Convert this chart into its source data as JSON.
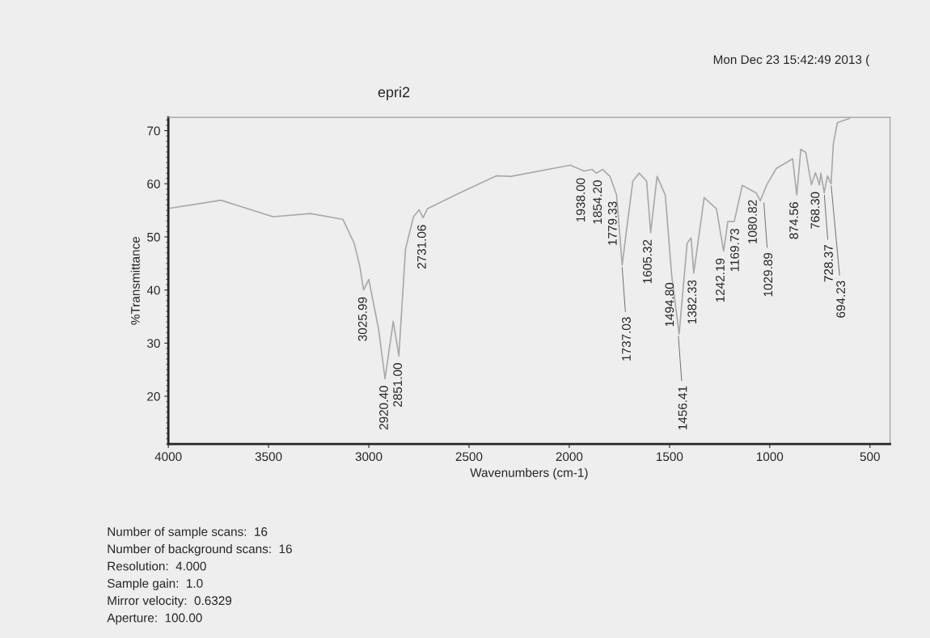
{
  "chart_data": {
    "type": "line",
    "title": "epri2",
    "xlabel": "Wavenumbers (cm-1)",
    "ylabel": "%Transmittance",
    "xlim": [
      4000,
      400
    ],
    "xticks": [
      4000,
      3500,
      3000,
      2500,
      2000,
      1500,
      1000,
      500
    ],
    "ylim": [
      11,
      72.5
    ],
    "yticks": [
      20,
      30,
      40,
      50,
      60,
      70
    ],
    "grid": false,
    "legend": false,
    "marker": "none",
    "line_style": "solid",
    "series": [
      {
        "color": "#a9a9a9",
        "x": [
          3992,
          3737,
          3478,
          3291,
          3129,
          3073,
          3045,
          3026,
          3000,
          2951,
          2919,
          2878,
          2850,
          2817,
          2777,
          2749,
          2729,
          2708,
          2546,
          2364,
          2291,
          1995,
          1926,
          1886,
          1865,
          1833,
          1797,
          1764,
          1736,
          1716,
          1683,
          1651,
          1614,
          1594,
          1562,
          1521,
          1489,
          1452,
          1412,
          1392,
          1379,
          1327,
          1266,
          1230,
          1209,
          1177,
          1137,
          1068,
          1047,
          1015,
          967,
          886,
          865,
          845,
          820,
          792,
          772,
          752,
          745,
          728,
          712,
          694,
          683,
          663,
          602
        ],
        "values": [
          55.4,
          56.9,
          53.8,
          54.4,
          53.3,
          48.8,
          44.5,
          40.0,
          42.0,
          32.6,
          23.3,
          34.1,
          27.6,
          47.7,
          53.8,
          55.1,
          53.6,
          55.3,
          58.3,
          61.5,
          61.4,
          63.5,
          62.4,
          62.7,
          62.0,
          62.7,
          61.4,
          57.9,
          44.7,
          50.8,
          60.5,
          62.0,
          60.5,
          50.8,
          61.4,
          57.9,
          42.7,
          31.7,
          48.8,
          49.8,
          43.2,
          57.4,
          55.3,
          47.3,
          52.9,
          52.9,
          59.7,
          58.3,
          56.8,
          59.8,
          62.9,
          64.7,
          57.9,
          66.5,
          65.9,
          59.8,
          62.1,
          59.8,
          62.0,
          58.3,
          61.5,
          60.0,
          67.4,
          71.5,
          72.3
        ]
      }
    ],
    "annotations": [
      "Mon Dec 23 15:42:49 2013 (",
      "Number of sample scans:  16",
      "Number of background scans:  16",
      "Resolution:  4.000",
      "Sample gain:  1.0",
      "Mirror velocity:  0.6329",
      "Aperture:  100.00",
      {
        "text": "3025.99",
        "x": 3025.99,
        "y": 40
      },
      {
        "text": "2920.40",
        "x": 2920.4,
        "y": 23.3
      },
      {
        "text": "2851.00",
        "x": 2851.0,
        "y": 27.6
      },
      {
        "text": "2731.06",
        "x": 2731.06,
        "y": 53.6
      },
      {
        "text": "1938.00",
        "x": 1938.0,
        "y": 62.4
      },
      {
        "text": "1854.20",
        "x": 1854.2,
        "y": 62.0
      },
      {
        "text": "1779.33",
        "x": 1779.33,
        "y": 58
      },
      {
        "text": "1737.03",
        "x": 1737.03,
        "y": 44.7
      },
      {
        "text": "1605.32",
        "x": 1605.32,
        "y": 50.8
      },
      {
        "text": "1494.80",
        "x": 1494.8,
        "y": 42.7
      },
      {
        "text": "1456.41",
        "x": 1456.41,
        "y": 31.7
      },
      {
        "text": "1382.33",
        "x": 1382.33,
        "y": 43.2
      },
      {
        "text": "1242.19",
        "x": 1242.19,
        "y": 47.3
      },
      {
        "text": "1169.73",
        "x": 1169.73,
        "y": 52.9
      },
      {
        "text": "1080.82",
        "x": 1080.82,
        "y": 58.3
      },
      {
        "text": "1029.89",
        "x": 1029.89,
        "y": 56.8
      },
      {
        "text": "874.56",
        "x": 874.56,
        "y": 57.9
      },
      {
        "text": "768.30",
        "x": 768.3,
        "y": 59.8
      },
      {
        "text": "728.37",
        "x": 728.37,
        "y": 58.3
      },
      {
        "text": "694.23",
        "x": 694.23,
        "y": 60
      }
    ]
  }
}
